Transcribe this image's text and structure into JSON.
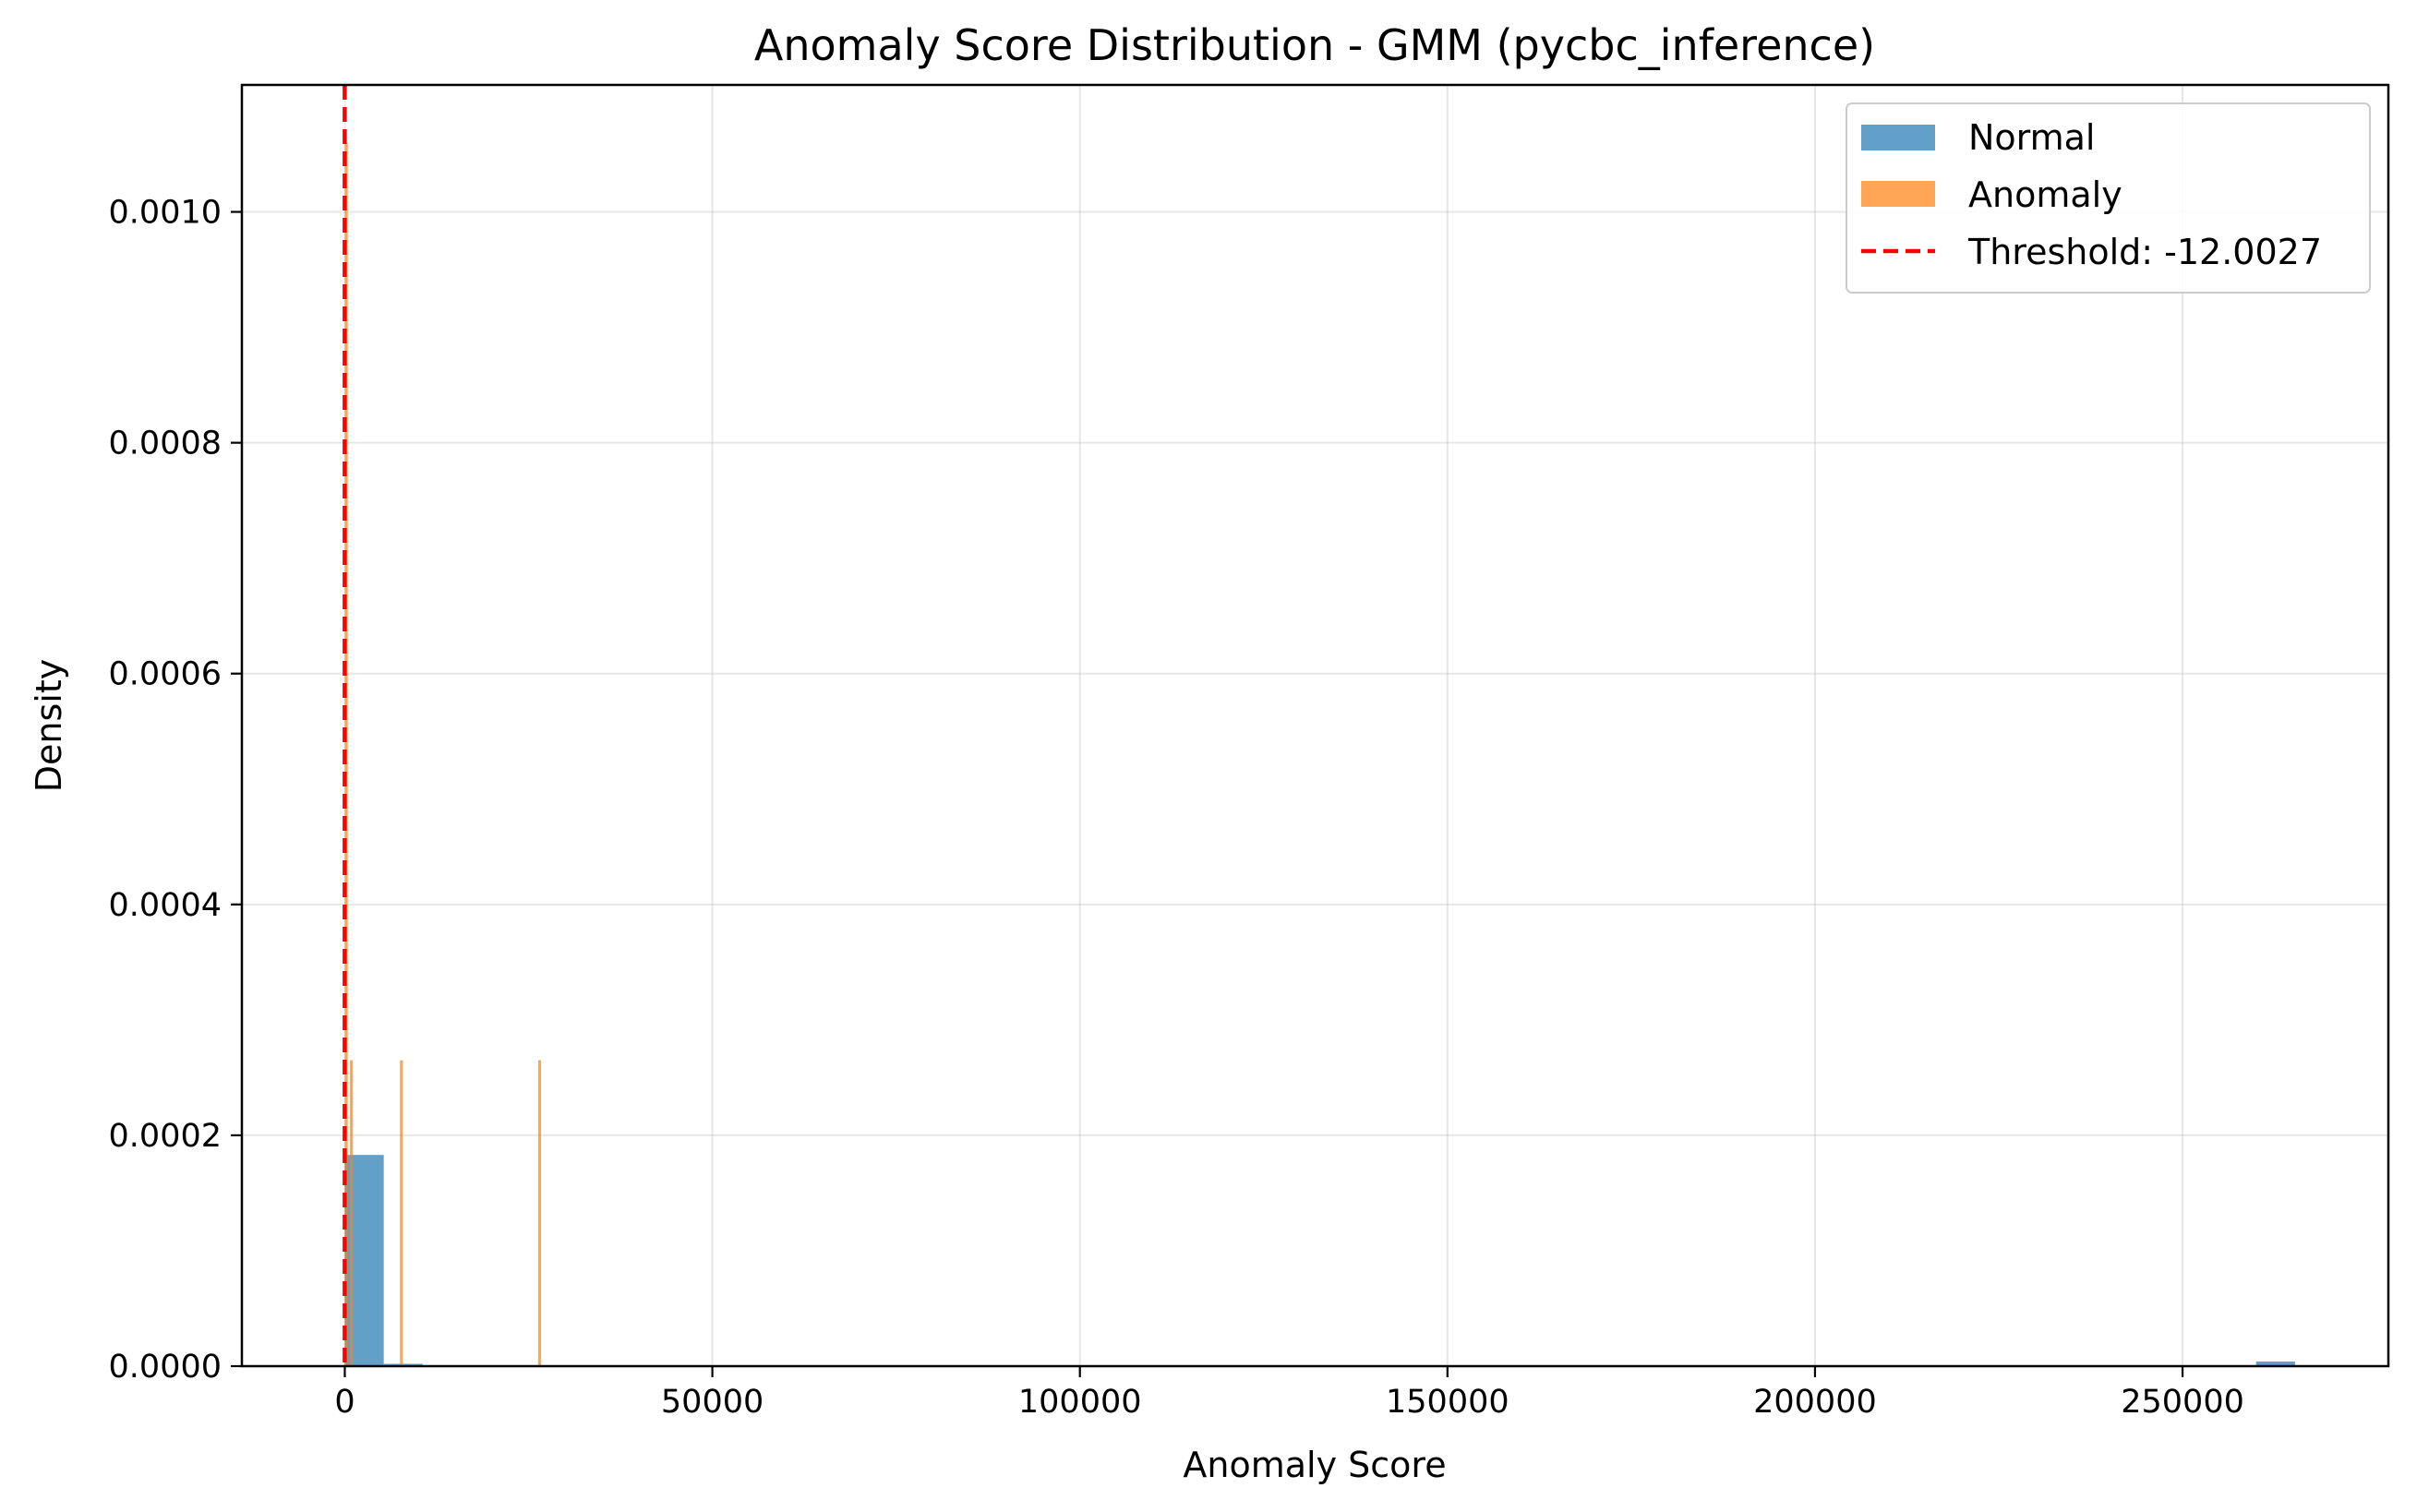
{
  "chart_data": {
    "type": "bar",
    "subtype": "histogram",
    "title": "Anomaly Score Distribution - GMM (pycbc_inference)",
    "xlabel": "Anomaly Score",
    "ylabel": "Density",
    "xlim": [
      -14000,
      278000
    ],
    "ylim": [
      0,
      0.00111
    ],
    "xticks": [
      0,
      50000,
      100000,
      150000,
      200000,
      250000
    ],
    "xtick_labels": [
      "0",
      "50000",
      "100000",
      "150000",
      "200000",
      "250000"
    ],
    "yticks": [
      0,
      0.0002,
      0.0004,
      0.0006,
      0.0008,
      0.001
    ],
    "ytick_labels": [
      "0.0000",
      "0.0002",
      "0.0004",
      "0.0006",
      "0.0008",
      "0.0010"
    ],
    "grid": true,
    "legend_position": "top-right",
    "series": [
      {
        "name": "Normal",
        "color": "#1f77b4",
        "opacity": 0.7,
        "bins": [
          {
            "x0": -12,
            "x1": 5300,
            "value": 0.000183
          },
          {
            "x0": 5300,
            "x1": 10600,
            "value": 2e-06
          },
          {
            "x0": 260000,
            "x1": 265300,
            "value": 4e-06
          }
        ]
      },
      {
        "name": "Anomaly",
        "color": "#ff7f0e",
        "opacity": 0.7,
        "bins": [
          {
            "x0": -12,
            "x1": 400,
            "value": 0.00106
          },
          {
            "x0": 700,
            "x1": 1100,
            "value": 0.000265
          },
          {
            "x0": 7500,
            "x1": 7900,
            "value": 0.000265
          },
          {
            "x0": 26300,
            "x1": 26700,
            "value": 0.000265
          }
        ]
      }
    ],
    "threshold": {
      "label": "Threshold: -12.0027",
      "value": -12.0027,
      "color": "#ff0000",
      "style": "dashed"
    }
  }
}
